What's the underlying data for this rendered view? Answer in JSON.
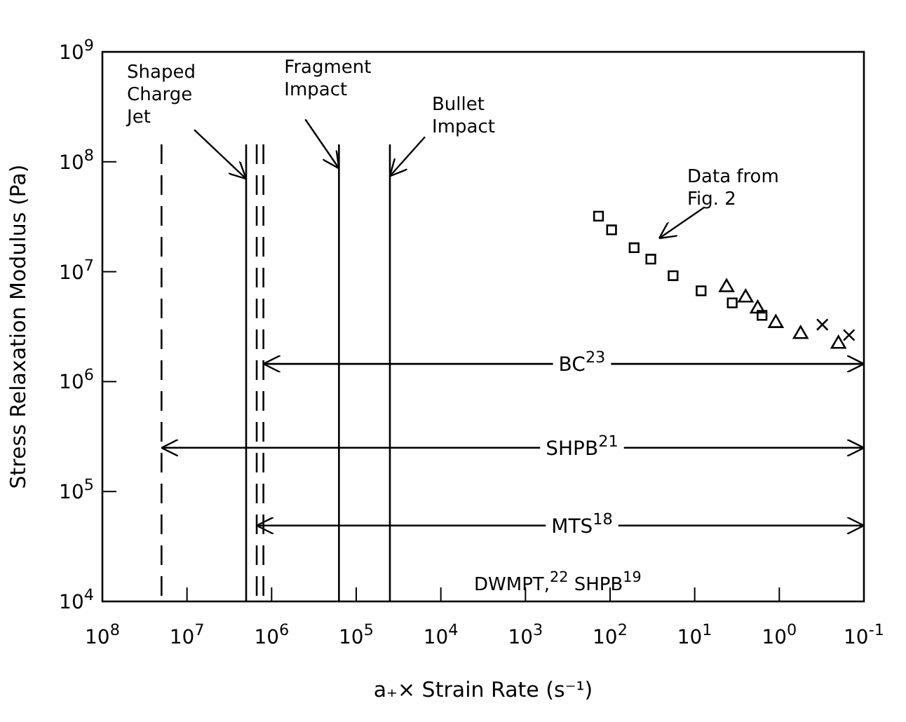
{
  "chart_data": {
    "type": "scatter",
    "xlabel": "a₊× Strain Rate (s⁻¹)",
    "ylabel": "Stress Relaxation Modulus (Pa)",
    "log": "xy",
    "xlim": [
      100000000,
      0.1
    ],
    "ylim": [
      10000,
      1000000000
    ],
    "xticks": [
      {
        "value": 100000000,
        "label": "10$^{8}$"
      },
      {
        "value": 10000000,
        "label": "10$^{7}$"
      },
      {
        "value": 1000000,
        "label": "10$^{6}$"
      },
      {
        "value": 100000,
        "label": "10$^{5}$"
      },
      {
        "value": 10000,
        "label": "10$^{4}$"
      },
      {
        "value": 1000,
        "label": "10$^{3}$"
      },
      {
        "value": 100,
        "label": "10$^{2}$"
      },
      {
        "value": 10,
        "label": "10$^{1}$"
      },
      {
        "value": 1,
        "label": "10$^{0}$"
      },
      {
        "value": 0.1,
        "label": "10$^{-1}$"
      }
    ],
    "yticks": [
      {
        "value": 10000,
        "label": "10$^{4}$"
      },
      {
        "value": 100000,
        "label": "10$^{5}$"
      },
      {
        "value": 1000000,
        "label": "10$^{6}$"
      },
      {
        "value": 10000000,
        "label": "10$^{7}$"
      },
      {
        "value": 100000000,
        "label": "10$^{8}$"
      },
      {
        "value": 1000000000,
        "label": "10$^{9}$"
      }
    ],
    "series": [
      {
        "marker": "square",
        "color": "#000000",
        "x": [
          137,
          96,
          52,
          33,
          18,
          8.4,
          3.6,
          1.6
        ],
        "values": [
          32000000,
          24000000,
          16500000,
          13000000,
          9200000,
          6700000,
          5200000,
          4000000
        ]
      },
      {
        "marker": "triangle",
        "color": "#000000",
        "x": [
          4.2,
          2.5,
          1.8,
          1.1,
          0.56,
          0.2
        ],
        "values": [
          7200000,
          5800000,
          4600000,
          3400000,
          2700000,
          2200000
        ]
      },
      {
        "marker": "cross",
        "color": "#000000",
        "x": [
          0.31,
          0.15
        ],
        "values": [
          3300000,
          2650000
        ]
      },
      {
        "type": "line",
        "name": "BC$^{23}$",
        "color": "#000000",
        "line_style": "solid",
        "x": [
          1250000,
          0.1
        ],
        "values": [
          1450000,
          1450000
        ]
      },
      {
        "type": "line",
        "name": "SHPB$^{21}$",
        "color": "#000000",
        "line_style": "solid",
        "x": [
          20000000,
          0.1
        ],
        "values": [
          250000,
          250000
        ]
      },
      {
        "type": "line",
        "name": "MTS$^{18}$",
        "color": "#000000",
        "line_style": "solid",
        "x": [
          1500000,
          0.1
        ],
        "values": [
          49000,
          49000
        ]
      }
    ],
    "ref_lines": [
      {
        "axis": "x",
        "value": 20000000,
        "color": "#000000",
        "line_style": "dashed"
      },
      {
        "axis": "x",
        "value": 2000000,
        "color": "#000000",
        "line_style": "solid"
      },
      {
        "axis": "x",
        "value": 1500000,
        "color": "#000000",
        "line_style": "dashed"
      },
      {
        "axis": "x",
        "value": 1250000,
        "color": "#000000",
        "line_style": "dashed"
      },
      {
        "axis": "x",
        "value": 160000,
        "color": "#000000",
        "line_style": "solid"
      },
      {
        "axis": "x",
        "value": 40000,
        "color": "#000000",
        "line_style": "solid"
      }
    ],
    "annotations": [
      {
        "text": "Shaped\nCharge\nJet",
        "x": 2000000,
        "y": 70000000
      },
      {
        "text": "Fragment\nImpact",
        "x": 160000,
        "y": 87000000
      },
      {
        "text": "Bullet\nImpact",
        "x": 40000,
        "y": 74000000
      },
      "Data from\nFig. 2",
      "DWMPT,$^{22}$ SHPB$^{19}$"
    ]
  }
}
